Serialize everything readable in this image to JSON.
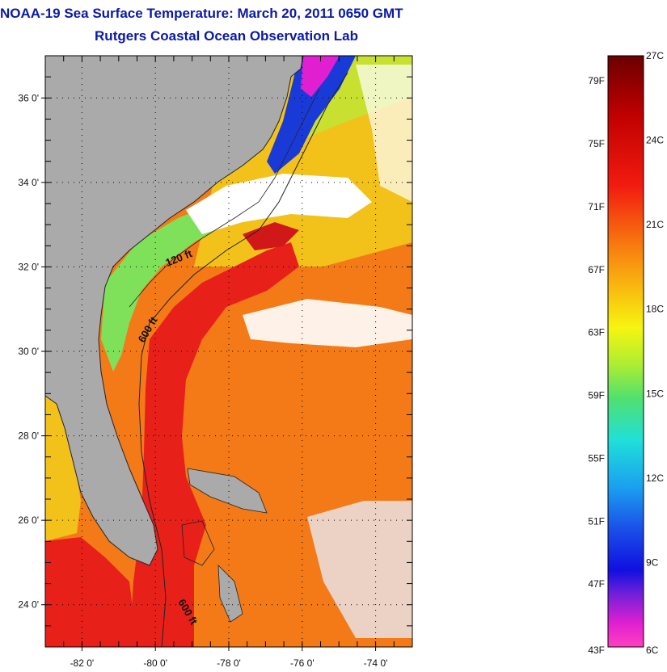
{
  "header": {
    "title": "NOAA-19 Sea Surface Temperature:  March 20, 2011 0650 GMT",
    "subtitle": "Rutgers Coastal Ocean Observation Lab"
  },
  "map": {
    "lon_range": [
      -83,
      -73
    ],
    "lat_range": [
      23,
      37
    ],
    "lat_ticks": [
      {
        "value": 36,
        "label": "36 0'"
      },
      {
        "value": 34,
        "label": "34 0'"
      },
      {
        "value": 32,
        "label": "32 0'"
      },
      {
        "value": 30,
        "label": "30 0'"
      },
      {
        "value": 28,
        "label": "28 0'"
      },
      {
        "value": 26,
        "label": "26 0'"
      },
      {
        "value": 24,
        "label": "24 0'"
      }
    ],
    "lon_ticks": [
      {
        "value": -82,
        "label": "-82 0'"
      },
      {
        "value": -80,
        "label": "-80 0'"
      },
      {
        "value": -78,
        "label": "-78 0'"
      },
      {
        "value": -76,
        "label": "-76 0'"
      },
      {
        "value": -74,
        "label": "-74 0'"
      }
    ],
    "contour_labels": [
      "120 ft",
      "600 ft",
      "600 ft"
    ],
    "colors": {
      "land": "#aaaaaa",
      "gulf_stream": "#e8201a",
      "warm": "#f47a18",
      "mid": "#f2c21a",
      "cool": "#7fe05a",
      "cold": "#1a3ad8",
      "cloud": "#ffffff"
    }
  },
  "color_scale": {
    "fahrenheit": [
      "79F",
      "75F",
      "71F",
      "67F",
      "63F",
      "59F",
      "55F",
      "51F",
      "47F",
      "43F"
    ],
    "celsius": [
      "27C",
      "24C",
      "21C",
      "18C",
      "15C",
      "12C",
      "9C",
      "6C"
    ]
  }
}
